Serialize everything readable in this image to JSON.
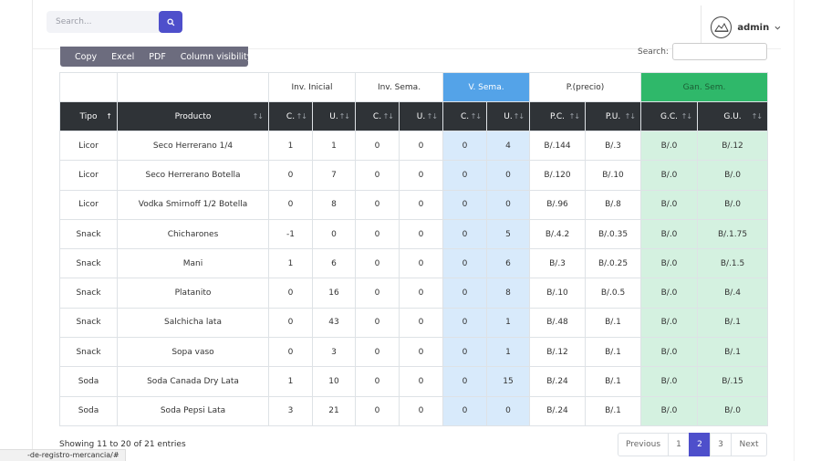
{
  "topbar": {
    "search_placeholder": "Search...",
    "username": "admin"
  },
  "buttons": [
    "Copy",
    "Excel",
    "PDF",
    "Column visibility"
  ],
  "table_search_label": "Search:",
  "groups": {
    "inv_inicial": "Inv. Inicial",
    "inv_sema": "Inv. Sema.",
    "v_sema": "V. Sema.",
    "precio": "P.(precio)",
    "gan_sem": "Gan. Sem."
  },
  "columns": [
    "Tipo",
    "Producto",
    "C.",
    "U.",
    "C.",
    "U.",
    "C.",
    "U.",
    "P.C.",
    "P.U.",
    "G.C.",
    "G.U."
  ],
  "rows": [
    [
      "Licor",
      "Seco Herrerano 1/4",
      "1",
      "1",
      "0",
      "0",
      "0",
      "4",
      "B/.144",
      "B/.3",
      "B/.0",
      "B/.12"
    ],
    [
      "Licor",
      "Seco Herrerano Botella",
      "0",
      "7",
      "0",
      "0",
      "0",
      "0",
      "B/.120",
      "B/.10",
      "B/.0",
      "B/.0"
    ],
    [
      "Licor",
      "Vodka Smirnoff 1/2 Botella",
      "0",
      "8",
      "0",
      "0",
      "0",
      "0",
      "B/.96",
      "B/.8",
      "B/.0",
      "B/.0"
    ],
    [
      "Snack",
      "Chicharones",
      "-1",
      "0",
      "0",
      "0",
      "0",
      "5",
      "B/.4.2",
      "B/.0.35",
      "B/.0",
      "B/.1.75"
    ],
    [
      "Snack",
      "Mani",
      "1",
      "6",
      "0",
      "0",
      "0",
      "6",
      "B/.3",
      "B/.0.25",
      "B/.0",
      "B/.1.5"
    ],
    [
      "Snack",
      "Platanito",
      "0",
      "16",
      "0",
      "0",
      "0",
      "8",
      "B/.10",
      "B/.0.5",
      "B/.0",
      "B/.4"
    ],
    [
      "Snack",
      "Salchicha lata",
      "0",
      "43",
      "0",
      "0",
      "0",
      "1",
      "B/.48",
      "B/.1",
      "B/.0",
      "B/.1"
    ],
    [
      "Snack",
      "Sopa vaso",
      "0",
      "3",
      "0",
      "0",
      "0",
      "1",
      "B/.12",
      "B/.1",
      "B/.0",
      "B/.1"
    ],
    [
      "Soda",
      "Soda Canada Dry Lata",
      "1",
      "10",
      "0",
      "0",
      "0",
      "15",
      "B/.24",
      "B/.1",
      "B/.0",
      "B/.15"
    ],
    [
      "Soda",
      "Soda Pepsi Lata",
      "3",
      "21",
      "0",
      "0",
      "0",
      "0",
      "B/.24",
      "B/.1",
      "B/.0",
      "B/.0"
    ]
  ],
  "info": "Showing 11 to 20 of 21 entries",
  "pagination": {
    "previous": "Previous",
    "pages": [
      "1",
      "2",
      "3"
    ],
    "active_page": "2",
    "next": "Next"
  },
  "status_url": "-de-registro-mercancia/#",
  "colors": {
    "accent": "#4e4fcb",
    "v_sema_header": "#54a3e8",
    "gan_sem_header": "#2fb86a",
    "v_sema_cell": "#d8eafb",
    "gan_sem_cell": "#d4f1e0",
    "table_header": "#2f3337"
  },
  "icons": {
    "search_button": "search-icon",
    "avatar": "mountain-logo-icon",
    "user_menu": "chevron-down-icon",
    "sort": "sort-arrows-icon"
  }
}
